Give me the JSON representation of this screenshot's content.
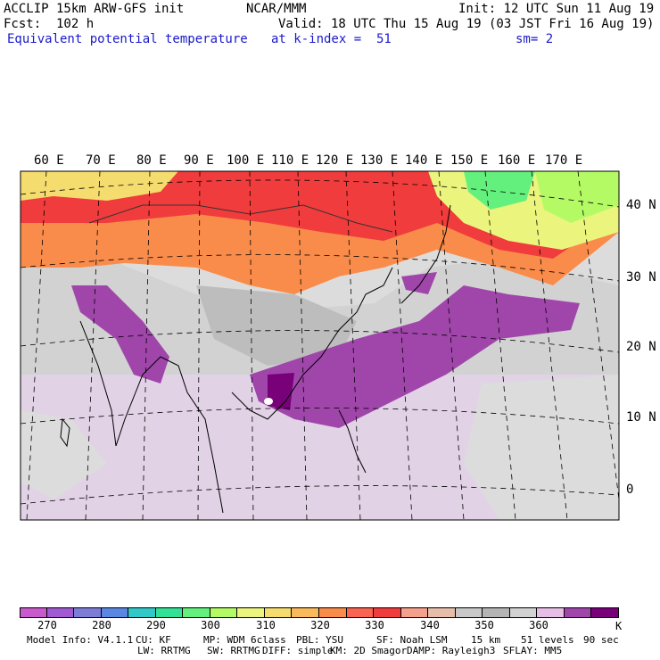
{
  "header": {
    "model_line": "ACCLIP 15km ARW-GFS init",
    "org": "NCAR/MMM",
    "init": "Init: 12 UTC Sun 11 Aug 19",
    "forecast": "Fcst:  102 h",
    "valid": "Valid: 18 UTC Thu 15 Aug 19 (03 JST Fri 16 Aug 19)",
    "field": "Equivalent potential temperature",
    "level": "at k-index =  51",
    "smoothing": "sm= 2"
  },
  "map": {
    "longitude_labels": [
      "60 E",
      "70 E",
      "80 E",
      "90 E",
      "100 E",
      "110 E",
      "120 E",
      "130 E",
      "140 E",
      "150 E",
      "160 E",
      "170 E"
    ],
    "latitude_labels": [
      "40 N",
      "30 N",
      "20 N",
      "10 N",
      "0"
    ]
  },
  "colorbar": {
    "colors": [
      "#c85acd",
      "#a05ad2",
      "#7d7dd7",
      "#5a87e1",
      "#32c8c8",
      "#32e196",
      "#64f07d",
      "#b4fa64",
      "#ebf57d",
      "#f5dc6e",
      "#fab95a",
      "#fa8c4b",
      "#fa6450",
      "#f03c3c",
      "#f5a08c",
      "#e6beaa",
      "#c8c8c8",
      "#b4b4b4",
      "#d2d2d2",
      "#e6bee6",
      "#a046aa",
      "#780078"
    ],
    "labels": [
      "270",
      "280",
      "290",
      "300",
      "310",
      "320",
      "330",
      "340",
      "350",
      "360"
    ],
    "unit": "K"
  },
  "footer": {
    "line1": [
      "Model Info: V4.1.1",
      "CU: KF",
      "MP: WDM 6class",
      "PBL: YSU",
      "SF: Noah LSM",
      "15 km",
      "51 levels",
      "90 sec"
    ],
    "line2": [
      "LW: RRTMG",
      "SW: RRTMG",
      "DIFF: simple",
      "KM: 2D Smagor",
      "DAMP: Rayleigh3",
      "SFLAY: MM5"
    ]
  }
}
